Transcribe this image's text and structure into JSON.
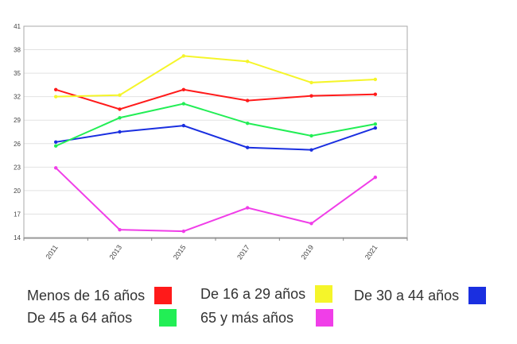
{
  "chart_data": {
    "type": "line",
    "categories": [
      "2011",
      "2013",
      "2015",
      "2017",
      "2019",
      "2021"
    ],
    "ylim": [
      14,
      41
    ],
    "yticks": [
      14,
      17,
      20,
      23,
      26,
      29,
      32,
      35,
      38,
      41
    ],
    "ytick_labels": [
      "14",
      "17",
      "20",
      "23",
      "26",
      "29",
      "32",
      "35",
      "38",
      "41"
    ],
    "grid": true,
    "legend_placement": "bottom",
    "series": [
      {
        "name": "Menos de 16 años",
        "color": "#ff1a1a",
        "values": [
          32.9,
          30.4,
          32.9,
          31.5,
          32.1,
          32.3
        ]
      },
      {
        "name": "De 16 a 29 años",
        "color": "#f5f52a",
        "values": [
          32.0,
          32.2,
          37.2,
          36.5,
          33.8,
          34.2
        ]
      },
      {
        "name": "De 30 a 44 años",
        "color": "#1a2fe0",
        "values": [
          26.2,
          27.5,
          28.3,
          25.5,
          25.2,
          28.0
        ]
      },
      {
        "name": "De 45 a 64 años",
        "color": "#22ee55",
        "values": [
          25.7,
          29.3,
          31.1,
          28.6,
          27.0,
          28.5
        ]
      },
      {
        "name": "65 y más años",
        "color": "#f03ee8",
        "values": [
          22.9,
          15.0,
          14.8,
          17.8,
          15.8,
          21.7
        ]
      }
    ]
  }
}
